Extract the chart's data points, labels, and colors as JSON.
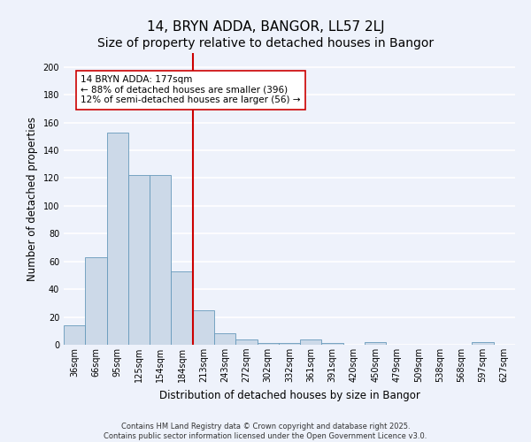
{
  "title": "14, BRYN ADDA, BANGOR, LL57 2LJ",
  "subtitle": "Size of property relative to detached houses in Bangor",
  "xlabel": "Distribution of detached houses by size in Bangor",
  "ylabel": "Number of detached properties",
  "categories": [
    "36sqm",
    "66sqm",
    "95sqm",
    "125sqm",
    "154sqm",
    "184sqm",
    "213sqm",
    "243sqm",
    "272sqm",
    "302sqm",
    "332sqm",
    "361sqm",
    "391sqm",
    "420sqm",
    "450sqm",
    "479sqm",
    "509sqm",
    "538sqm",
    "568sqm",
    "597sqm",
    "627sqm"
  ],
  "values": [
    14,
    63,
    153,
    122,
    122,
    53,
    25,
    8,
    4,
    1,
    1,
    4,
    1,
    0,
    2,
    0,
    0,
    0,
    0,
    2,
    0
  ],
  "bar_color": "#ccd9e8",
  "bar_edge_color": "#6699bb",
  "vline_x_index": 5,
  "vline_color": "#cc0000",
  "annotation_text": "14 BRYN ADDA: 177sqm\n← 88% of detached houses are smaller (396)\n12% of semi-detached houses are larger (56) →",
  "annotation_box_color": "#ffffff",
  "annotation_box_edge": "#cc0000",
  "ylim": [
    0,
    210
  ],
  "yticks": [
    0,
    20,
    40,
    60,
    80,
    100,
    120,
    140,
    160,
    180,
    200
  ],
  "background_color": "#eef2fb",
  "grid_color": "#ffffff",
  "footnote": "Contains HM Land Registry data © Crown copyright and database right 2025.\nContains public sector information licensed under the Open Government Licence v3.0.",
  "title_fontsize": 11,
  "subtitle_fontsize": 10,
  "label_fontsize": 8.5,
  "tick_fontsize": 7,
  "annot_fontsize": 7.5,
  "footnote_fontsize": 6
}
